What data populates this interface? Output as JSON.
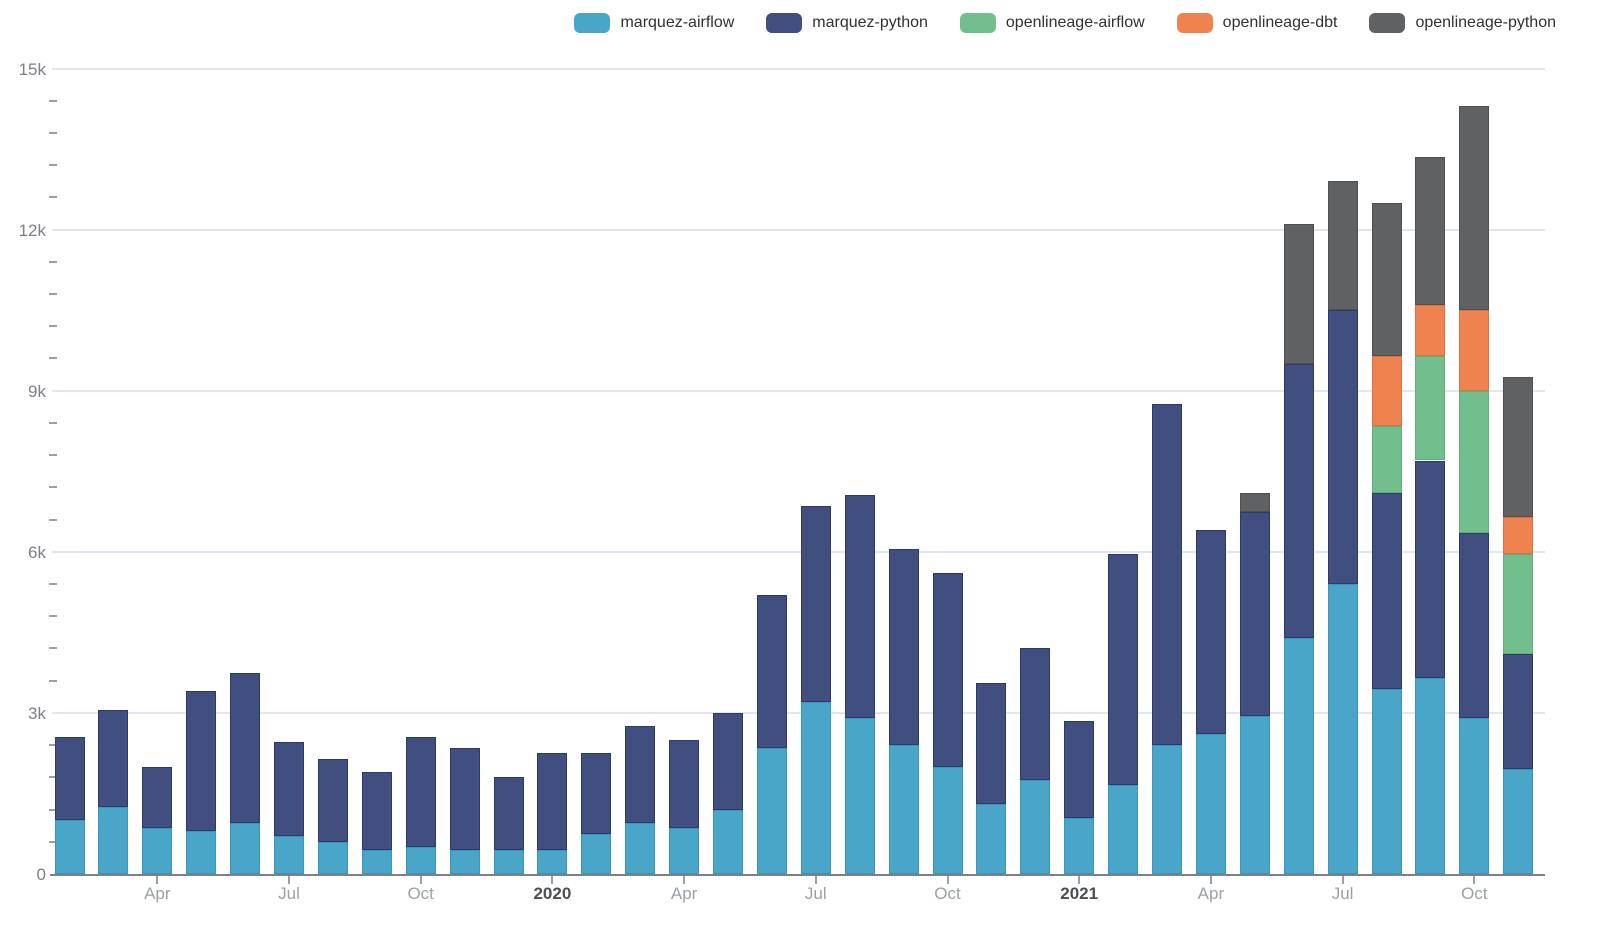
{
  "legend": {
    "items": [
      {
        "label": "marquez-airflow",
        "color": "#4AA6C9"
      },
      {
        "label": "marquez-python",
        "color": "#404E80"
      },
      {
        "label": "openlineage-airflow",
        "color": "#72BF8D"
      },
      {
        "label": "openlineage-dbt",
        "color": "#EF8350"
      },
      {
        "label": "openlineage-python",
        "color": "#5F6163"
      }
    ]
  },
  "chart_data": {
    "type": "bar",
    "stacked": true,
    "title": "",
    "xlabel": "",
    "ylabel": "",
    "grid": true,
    "legend_position": "top",
    "ylim": [
      0,
      15000
    ],
    "ytick_step": 3000,
    "yticks": [
      {
        "value": 0,
        "label": "0"
      },
      {
        "value": 3000,
        "label": "3k"
      },
      {
        "value": 6000,
        "label": "6k"
      },
      {
        "value": 9000,
        "label": "9k"
      },
      {
        "value": 12000,
        "label": "12k"
      },
      {
        "value": 15000,
        "label": "15k"
      }
    ],
    "y_minor_tick_step": 600,
    "x": [
      "Feb 2019",
      "Mar 2019",
      "Apr 2019",
      "May 2019",
      "Jun 2019",
      "Jul 2019",
      "Aug 2019",
      "Sep 2019",
      "Oct 2019",
      "Nov 2019",
      "Dec 2019",
      "Jan 2020",
      "Feb 2020",
      "Mar 2020",
      "Apr 2020",
      "May 2020",
      "Jun 2020",
      "Jul 2020",
      "Aug 2020",
      "Sep 2020",
      "Oct 2020",
      "Nov 2020",
      "Dec 2020",
      "Jan 2021",
      "Feb 2021",
      "Mar 2021",
      "Apr 2021",
      "May 2021",
      "Jun 2021",
      "Jul 2021",
      "Aug 2021",
      "Sep 2021",
      "Oct 2021",
      "Nov 2021"
    ],
    "xticks": [
      {
        "label": "Apr",
        "index": 2,
        "bold": false
      },
      {
        "label": "Jul",
        "index": 5,
        "bold": false
      },
      {
        "label": "Oct",
        "index": 8,
        "bold": false
      },
      {
        "label": "2020",
        "index": 11,
        "bold": true
      },
      {
        "label": "Apr",
        "index": 14,
        "bold": false
      },
      {
        "label": "Jul",
        "index": 17,
        "bold": false
      },
      {
        "label": "Oct",
        "index": 20,
        "bold": false
      },
      {
        "label": "2021",
        "index": 23,
        "bold": true
      },
      {
        "label": "Apr",
        "index": 26,
        "bold": false
      },
      {
        "label": "Jul",
        "index": 29,
        "bold": false
      },
      {
        "label": "Oct",
        "index": 32,
        "bold": false
      }
    ],
    "series": [
      {
        "name": "marquez-airflow",
        "color": "#4AA6C9",
        "border_color": "#3A95B8",
        "values": [
          1000,
          1250,
          850,
          800,
          950,
          700,
          600,
          450,
          500,
          450,
          450,
          450,
          750,
          950,
          850,
          1200,
          2350,
          3200,
          2900,
          2400,
          2000,
          1300,
          1750,
          1050,
          1650,
          2400,
          2600,
          2950,
          4400,
          5400,
          3450,
          3650,
          2900,
          1950
        ]
      },
      {
        "name": "marquez-python",
        "color": "#404E80",
        "border_color": "#2C3A66",
        "values": [
          1550,
          1800,
          1150,
          2600,
          2800,
          1750,
          1550,
          1450,
          2050,
          1900,
          1350,
          1800,
          1500,
          1800,
          1650,
          1800,
          2850,
          3650,
          4150,
          3650,
          3600,
          2250,
          2450,
          1800,
          4300,
          6350,
          3800,
          3800,
          5100,
          5100,
          3650,
          4050,
          3450,
          2150
        ]
      },
      {
        "name": "openlineage-airflow",
        "color": "#72BF8D",
        "border_color": "#5FAE7B",
        "values": [
          0,
          0,
          0,
          0,
          0,
          0,
          0,
          0,
          0,
          0,
          0,
          0,
          0,
          0,
          0,
          0,
          0,
          0,
          0,
          0,
          0,
          0,
          0,
          0,
          0,
          0,
          0,
          0,
          0,
          0,
          1250,
          1950,
          2650,
          1850
        ]
      },
      {
        "name": "openlineage-dbt",
        "color": "#EF8350",
        "border_color": "#DD7140",
        "values": [
          0,
          0,
          0,
          0,
          0,
          0,
          0,
          0,
          0,
          0,
          0,
          0,
          0,
          0,
          0,
          0,
          0,
          0,
          0,
          0,
          0,
          0,
          0,
          0,
          0,
          0,
          0,
          0,
          0,
          0,
          1300,
          950,
          1500,
          700
        ]
      },
      {
        "name": "openlineage-python",
        "color": "#5F6163",
        "border_color": "#4D4F51",
        "values": [
          0,
          0,
          0,
          0,
          0,
          0,
          0,
          0,
          0,
          0,
          0,
          0,
          0,
          0,
          0,
          0,
          0,
          0,
          0,
          0,
          0,
          0,
          0,
          0,
          0,
          0,
          0,
          350,
          2600,
          2400,
          2850,
          2750,
          3800,
          2600
        ]
      }
    ]
  }
}
